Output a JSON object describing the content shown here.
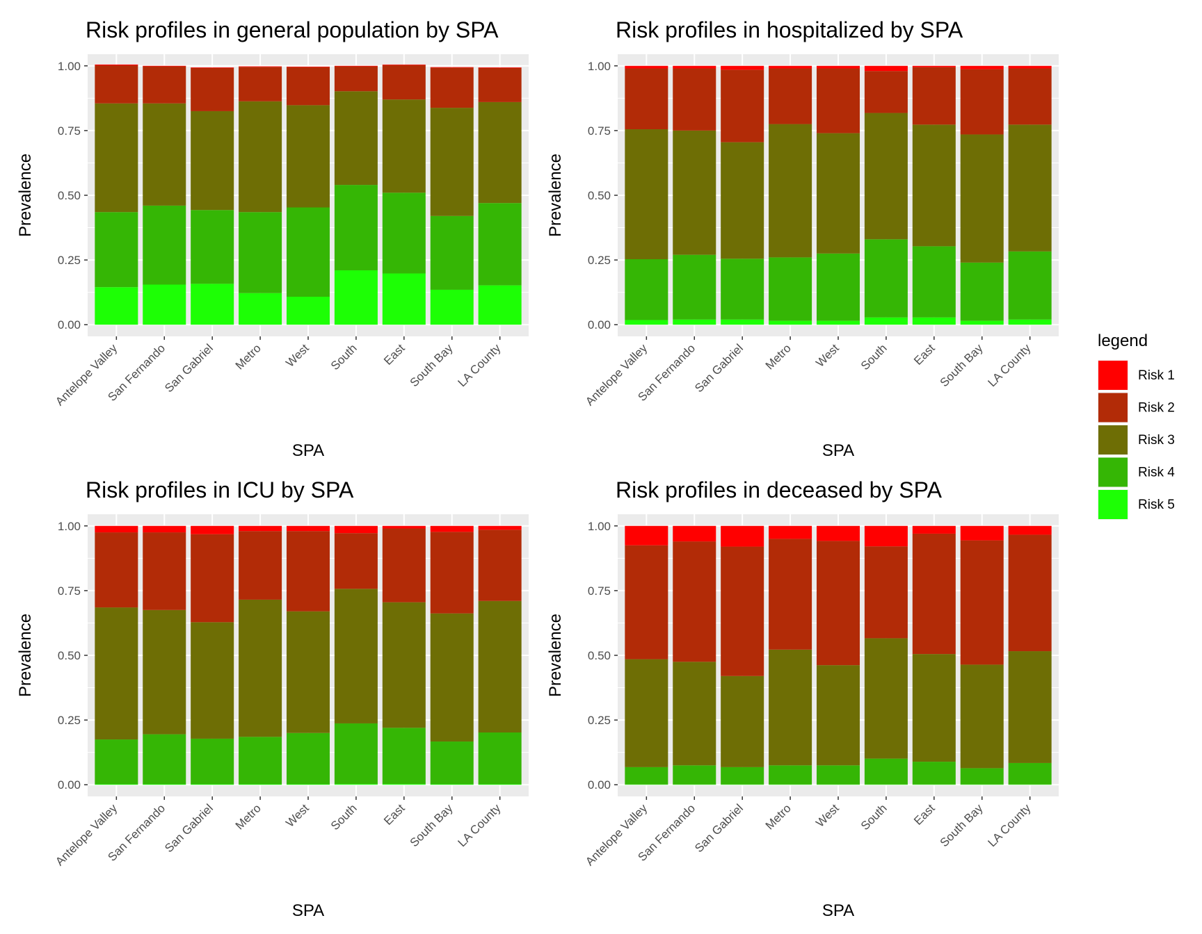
{
  "legend": {
    "title": "legend",
    "items": [
      {
        "label": "Risk 1",
        "color": "#FF0000"
      },
      {
        "label": "Risk 2",
        "color": "#B22B07"
      },
      {
        "label": "Risk 3",
        "color": "#6E6E05"
      },
      {
        "label": "Risk 4",
        "color": "#35B605"
      },
      {
        "label": "Risk 5",
        "color": "#1DFF05"
      }
    ]
  },
  "chart_data": [
    {
      "type": "bar",
      "stacked": true,
      "title": "Risk profiles in general population by SPA",
      "xlabel": "SPA",
      "ylabel": "Prevalence",
      "ylim": [
        0,
        1
      ],
      "yticks": [
        "0.00",
        "0.25",
        "0.50",
        "0.75",
        "1.00"
      ],
      "categories": [
        "Antelope Valley",
        "San Fernando",
        "San Gabriel",
        "Metro",
        "West",
        "South",
        "East",
        "South Bay",
        "LA County"
      ],
      "series": [
        {
          "name": "Risk 5",
          "values": [
            0.145,
            0.155,
            0.158,
            0.122,
            0.108,
            0.21,
            0.198,
            0.135,
            0.152
          ]
        },
        {
          "name": "Risk 4",
          "values": [
            0.29,
            0.305,
            0.285,
            0.313,
            0.345,
            0.33,
            0.312,
            0.285,
            0.318
          ]
        },
        {
          "name": "Risk 3",
          "values": [
            0.42,
            0.395,
            0.382,
            0.428,
            0.395,
            0.362,
            0.36,
            0.418,
            0.39
          ]
        },
        {
          "name": "Risk 2",
          "values": [
            0.147,
            0.143,
            0.167,
            0.133,
            0.147,
            0.096,
            0.133,
            0.155,
            0.132
          ]
        },
        {
          "name": "Risk 1",
          "values": [
            0.003,
            0.002,
            0.002,
            0.002,
            0.002,
            0.002,
            0.002,
            0.002,
            0.002
          ]
        }
      ]
    },
    {
      "type": "bar",
      "stacked": true,
      "title": "Risk profiles in hospitalized by SPA",
      "xlabel": "SPA",
      "ylabel": "Prevalence",
      "ylim": [
        0,
        1
      ],
      "yticks": [
        "0.00",
        "0.25",
        "0.50",
        "0.75",
        "1.00"
      ],
      "categories": [
        "Antelope Valley",
        "San Fernando",
        "San Gabriel",
        "Metro",
        "West",
        "South",
        "East",
        "South Bay",
        "LA County"
      ],
      "series": [
        {
          "name": "Risk 5",
          "values": [
            0.018,
            0.02,
            0.02,
            0.015,
            0.015,
            0.028,
            0.028,
            0.015,
            0.02
          ]
        },
        {
          "name": "Risk 4",
          "values": [
            0.235,
            0.25,
            0.235,
            0.245,
            0.26,
            0.302,
            0.275,
            0.225,
            0.263
          ]
        },
        {
          "name": "Risk 3",
          "values": [
            0.502,
            0.48,
            0.45,
            0.515,
            0.465,
            0.488,
            0.47,
            0.495,
            0.49
          ]
        },
        {
          "name": "Risk 2",
          "values": [
            0.235,
            0.24,
            0.28,
            0.215,
            0.25,
            0.162,
            0.222,
            0.252,
            0.217
          ]
        },
        {
          "name": "Risk 1",
          "values": [
            0.01,
            0.01,
            0.015,
            0.01,
            0.01,
            0.02,
            0.005,
            0.013,
            0.01
          ]
        }
      ]
    },
    {
      "type": "bar",
      "stacked": true,
      "title": "Risk profiles in ICU by SPA",
      "xlabel": "SPA",
      "ylabel": "Prevalence",
      "ylim": [
        0,
        1
      ],
      "yticks": [
        "0.00",
        "0.25",
        "0.50",
        "0.75",
        "1.00"
      ],
      "categories": [
        "Antelope Valley",
        "San Fernando",
        "San Gabriel",
        "Metro",
        "West",
        "South",
        "East",
        "South Bay",
        "LA County"
      ],
      "series": [
        {
          "name": "Risk 5",
          "values": [
            0.002,
            0.002,
            0.002,
            0.002,
            0.002,
            0.003,
            0.003,
            0.002,
            0.002
          ]
        },
        {
          "name": "Risk 4",
          "values": [
            0.173,
            0.193,
            0.176,
            0.183,
            0.198,
            0.234,
            0.217,
            0.165,
            0.2
          ]
        },
        {
          "name": "Risk 3",
          "values": [
            0.51,
            0.48,
            0.45,
            0.53,
            0.47,
            0.52,
            0.485,
            0.495,
            0.508
          ]
        },
        {
          "name": "Risk 2",
          "values": [
            0.29,
            0.3,
            0.34,
            0.265,
            0.31,
            0.215,
            0.285,
            0.315,
            0.275
          ]
        },
        {
          "name": "Risk 1",
          "values": [
            0.025,
            0.025,
            0.032,
            0.02,
            0.02,
            0.028,
            0.01,
            0.023,
            0.015
          ]
        }
      ]
    },
    {
      "type": "bar",
      "stacked": true,
      "title": "Risk profiles in deceased by SPA",
      "xlabel": "SPA",
      "ylabel": "Prevalence",
      "ylim": [
        0,
        1
      ],
      "yticks": [
        "0.00",
        "0.25",
        "0.50",
        "0.75",
        "1.00"
      ],
      "categories": [
        "Antelope Valley",
        "San Fernando",
        "San Gabriel",
        "Metro",
        "West",
        "South",
        "East",
        "South Bay",
        "LA County"
      ],
      "series": [
        {
          "name": "Risk 5",
          "values": [
            0.001,
            0.001,
            0.001,
            0.001,
            0.001,
            0.001,
            0.001,
            0.001,
            0.001
          ]
        },
        {
          "name": "Risk 4",
          "values": [
            0.067,
            0.074,
            0.067,
            0.074,
            0.074,
            0.1,
            0.088,
            0.063,
            0.083
          ]
        },
        {
          "name": "Risk 3",
          "values": [
            0.417,
            0.4,
            0.352,
            0.447,
            0.387,
            0.465,
            0.416,
            0.4,
            0.432
          ]
        },
        {
          "name": "Risk 2",
          "values": [
            0.44,
            0.465,
            0.5,
            0.428,
            0.48,
            0.355,
            0.465,
            0.48,
            0.45
          ]
        },
        {
          "name": "Risk 1",
          "values": [
            0.075,
            0.06,
            0.08,
            0.05,
            0.058,
            0.079,
            0.03,
            0.056,
            0.034
          ]
        }
      ]
    }
  ]
}
